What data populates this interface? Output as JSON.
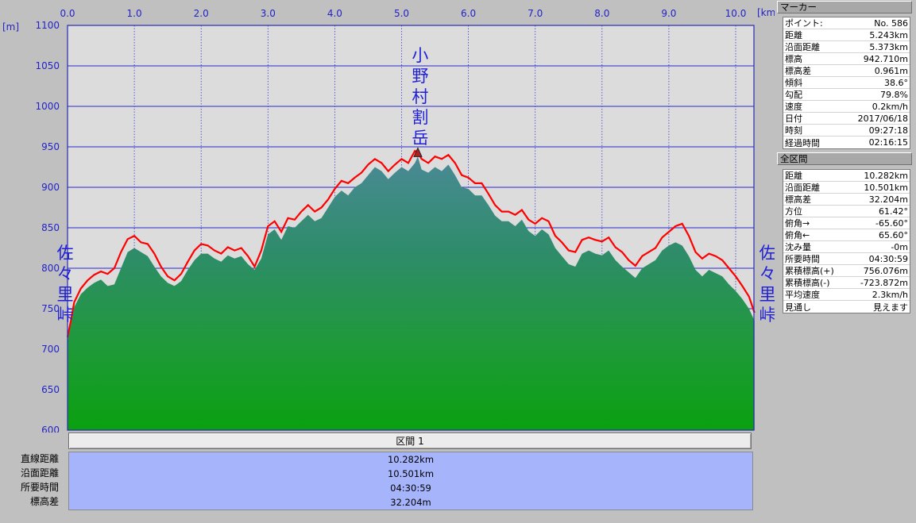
{
  "chart_data": {
    "type": "area",
    "xunit": "[km]",
    "yunit": "[m]",
    "xlim": [
      0,
      10.5
    ],
    "ylim": [
      600,
      1100
    ],
    "x_ticks": [
      "0.0",
      "1.0",
      "2.0",
      "3.0",
      "4.0",
      "5.0",
      "6.0",
      "7.0",
      "8.0",
      "9.0",
      "10.0"
    ],
    "y_ticks": [
      "1100",
      "1050",
      "1000",
      "950",
      "900",
      "850",
      "800",
      "750",
      "700",
      "650",
      "600"
    ],
    "grid": true,
    "series": [
      {
        "color": "#ff0000",
        "x": [
          0,
          0.05,
          0.1,
          0.2,
          0.3,
          0.4,
          0.5,
          0.6,
          0.7,
          0.8,
          0.9,
          1.0,
          1.1,
          1.2,
          1.3,
          1.4,
          1.5,
          1.6,
          1.7,
          1.8,
          1.9,
          2.0,
          2.1,
          2.2,
          2.3,
          2.4,
          2.5,
          2.6,
          2.7,
          2.8,
          2.9,
          3.0,
          3.1,
          3.2,
          3.3,
          3.4,
          3.5,
          3.6,
          3.7,
          3.8,
          3.9,
          4.0,
          4.1,
          4.2,
          4.3,
          4.4,
          4.5,
          4.6,
          4.7,
          4.8,
          4.9,
          5.0,
          5.1,
          5.2,
          5.243,
          5.3,
          5.4,
          5.5,
          5.6,
          5.7,
          5.8,
          5.9,
          6.0,
          6.1,
          6.2,
          6.3,
          6.4,
          6.5,
          6.6,
          6.7,
          6.8,
          6.9,
          7.0,
          7.1,
          7.2,
          7.3,
          7.4,
          7.5,
          7.6,
          7.7,
          7.8,
          7.9,
          8.0,
          8.1,
          8.2,
          8.3,
          8.4,
          8.5,
          8.6,
          8.7,
          8.8,
          8.9,
          9.0,
          9.1,
          9.2,
          9.3,
          9.4,
          9.5,
          9.6,
          9.7,
          9.8,
          9.9,
          10.0,
          10.1,
          10.2,
          10.282
        ],
        "y": [
          715,
          735,
          758,
          775,
          785,
          792,
          796,
          793,
          800,
          820,
          836,
          840,
          832,
          830,
          818,
          802,
          790,
          785,
          793,
          808,
          822,
          830,
          828,
          822,
          818,
          826,
          822,
          825,
          815,
          802,
          822,
          852,
          858,
          845,
          862,
          860,
          870,
          878,
          870,
          875,
          885,
          898,
          908,
          905,
          912,
          918,
          928,
          935,
          930,
          920,
          928,
          935,
          930,
          945,
          943,
          935,
          930,
          938,
          935,
          940,
          930,
          915,
          912,
          905,
          905,
          892,
          878,
          870,
          870,
          866,
          872,
          860,
          855,
          862,
          858,
          840,
          832,
          822,
          820,
          835,
          838,
          835,
          833,
          838,
          826,
          820,
          810,
          803,
          815,
          820,
          825,
          838,
          845,
          852,
          855,
          840,
          820,
          812,
          818,
          815,
          810,
          800,
          790,
          778,
          765,
          745
        ]
      },
      {
        "color": "#2e8b57",
        "x": [
          0,
          0.05,
          0.1,
          0.2,
          0.3,
          0.4,
          0.5,
          0.6,
          0.7,
          0.8,
          0.9,
          1.0,
          1.1,
          1.2,
          1.3,
          1.4,
          1.5,
          1.6,
          1.7,
          1.8,
          1.9,
          2.0,
          2.1,
          2.2,
          2.3,
          2.4,
          2.5,
          2.6,
          2.7,
          2.8,
          2.9,
          3.0,
          3.1,
          3.2,
          3.3,
          3.4,
          3.5,
          3.6,
          3.7,
          3.8,
          3.9,
          4.0,
          4.1,
          4.2,
          4.3,
          4.4,
          4.5,
          4.6,
          4.7,
          4.8,
          4.9,
          5.0,
          5.1,
          5.2,
          5.243,
          5.3,
          5.4,
          5.5,
          5.6,
          5.7,
          5.8,
          5.9,
          6.0,
          6.1,
          6.2,
          6.3,
          6.4,
          6.5,
          6.6,
          6.7,
          6.8,
          6.9,
          7.0,
          7.1,
          7.2,
          7.3,
          7.4,
          7.5,
          7.6,
          7.7,
          7.8,
          7.9,
          8.0,
          8.1,
          8.2,
          8.3,
          8.4,
          8.5,
          8.6,
          8.7,
          8.8,
          8.9,
          9.0,
          9.1,
          9.2,
          9.3,
          9.4,
          9.5,
          9.6,
          9.7,
          9.8,
          9.9,
          10.0,
          10.1,
          10.2,
          10.282
        ],
        "y": [
          712,
          730,
          752,
          768,
          776,
          782,
          786,
          778,
          780,
          800,
          820,
          825,
          820,
          815,
          802,
          790,
          782,
          778,
          784,
          798,
          810,
          818,
          818,
          812,
          808,
          816,
          812,
          815,
          805,
          798,
          812,
          842,
          848,
          835,
          852,
          850,
          858,
          866,
          858,
          862,
          875,
          888,
          896,
          890,
          900,
          905,
          915,
          925,
          920,
          910,
          918,
          925,
          920,
          930,
          938,
          922,
          918,
          925,
          920,
          928,
          915,
          900,
          898,
          890,
          890,
          878,
          865,
          858,
          858,
          852,
          860,
          846,
          840,
          848,
          842,
          825,
          815,
          805,
          802,
          818,
          822,
          818,
          816,
          822,
          810,
          802,
          795,
          788,
          800,
          805,
          810,
          822,
          828,
          832,
          828,
          815,
          798,
          790,
          798,
          794,
          790,
          780,
          772,
          762,
          750,
          735
        ]
      }
    ],
    "marker_x": 5.243,
    "marker_y": 942.71,
    "annotations": [
      {
        "text": "小野村割岳",
        "x": 5.243
      },
      {
        "text": "佐々里峠",
        "x": 0.0
      },
      {
        "text": "佐々里峠",
        "x": 10.282
      }
    ]
  },
  "section": {
    "title": "区間 1",
    "rows": [
      {
        "label": "直線距離",
        "value": "10.282km"
      },
      {
        "label": "沿面距離",
        "value": "10.501km"
      },
      {
        "label": "所要時間",
        "value": "04:30:59"
      },
      {
        "label": "標高差",
        "value": "32.204m"
      }
    ]
  },
  "marker_panel": {
    "title": "マーカー",
    "rows": [
      {
        "label": "ポイント:",
        "value": "No. 586"
      },
      {
        "label": "距離",
        "value": "5.243km"
      },
      {
        "label": "沿面距離",
        "value": "5.373km"
      },
      {
        "label": "標高",
        "value": "942.710m"
      },
      {
        "label": "標高差",
        "value": "0.961m"
      },
      {
        "label": "傾斜",
        "value": "38.6°"
      },
      {
        "label": "勾配",
        "value": "79.8%"
      },
      {
        "label": "速度",
        "value": "0.2km/h"
      },
      {
        "label": "日付",
        "value": "2017/06/18"
      },
      {
        "label": "時刻",
        "value": "09:27:18"
      },
      {
        "label": "経過時間",
        "value": "02:16:15"
      }
    ]
  },
  "total_panel": {
    "title": "全区間",
    "rows": [
      {
        "label": "距離",
        "value": "10.282km"
      },
      {
        "label": "沿面距離",
        "value": "10.501km"
      },
      {
        "label": "標高差",
        "value": "32.204m"
      },
      {
        "label": "方位",
        "value": "61.42°"
      },
      {
        "label": "俯角→",
        "value": "-65.60°"
      },
      {
        "label": "俯角←",
        "value": "65.60°"
      },
      {
        "label": "沈み量",
        "value": "-0m"
      },
      {
        "label": "所要時間",
        "value": "04:30:59"
      },
      {
        "label": "累積標高(+)",
        "value": "756.076m"
      },
      {
        "label": "累積標高(-)",
        "value": "-723.872m"
      },
      {
        "label": "平均速度",
        "value": "2.3km/h"
      },
      {
        "label": "見通し",
        "value": "見えます"
      }
    ]
  }
}
